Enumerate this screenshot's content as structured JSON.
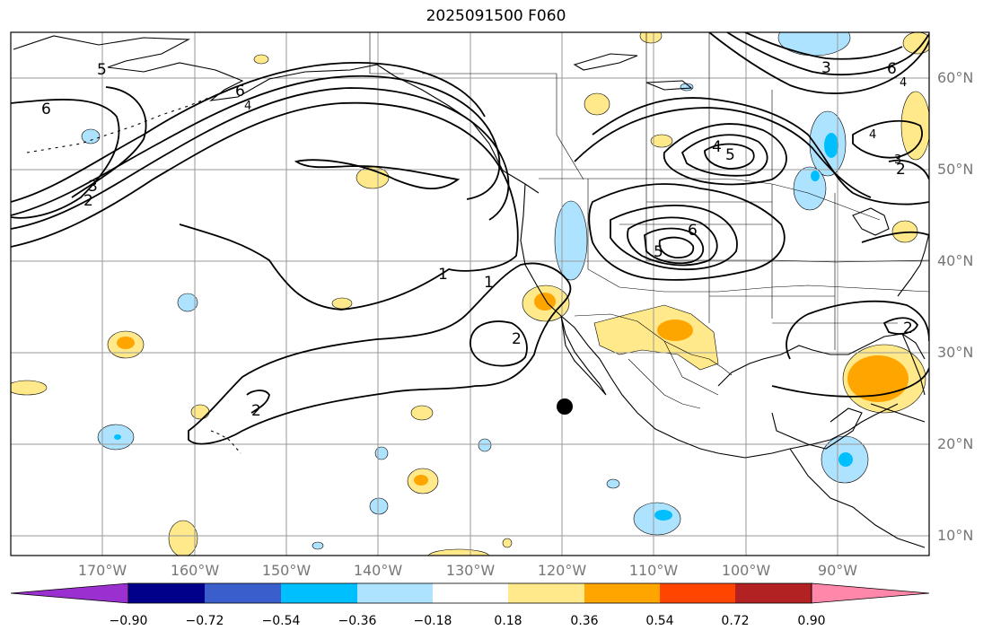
{
  "title": "2025091500 F060",
  "lon_labels": [
    "170°W",
    "160°W",
    "150°W",
    "140°W",
    "130°W",
    "120°W",
    "110°W",
    "100°W",
    "90°W"
  ],
  "lat_labels": [
    "60°N",
    "50°N",
    "40°N",
    "30°N",
    "20°N",
    "10°N"
  ],
  "colorbar": {
    "labels": [
      "−0.90",
      "−0.72",
      "−0.54",
      "−0.36",
      "−0.18",
      "0.18",
      "0.36",
      "0.54",
      "0.72",
      "0.90"
    ],
    "colors": [
      "#9b30d0",
      "#00008b",
      "#3a5fcd",
      "#00bfff",
      "#aee3ff",
      "#ffffff",
      "#ffe98a",
      "#ffa500",
      "#ff4500",
      "#b22222",
      "#ff88aa"
    ]
  },
  "contour_labels": [
    "5",
    "6",
    "6",
    "4",
    "3",
    "2",
    "1",
    "1",
    "2",
    "2",
    "4",
    "5",
    "6",
    "5",
    "3",
    "6",
    "4",
    "2",
    "3",
    "4",
    "2"
  ],
  "colors": {
    "contour": "#000000",
    "grid": "#999999",
    "marker": "#000000"
  }
}
